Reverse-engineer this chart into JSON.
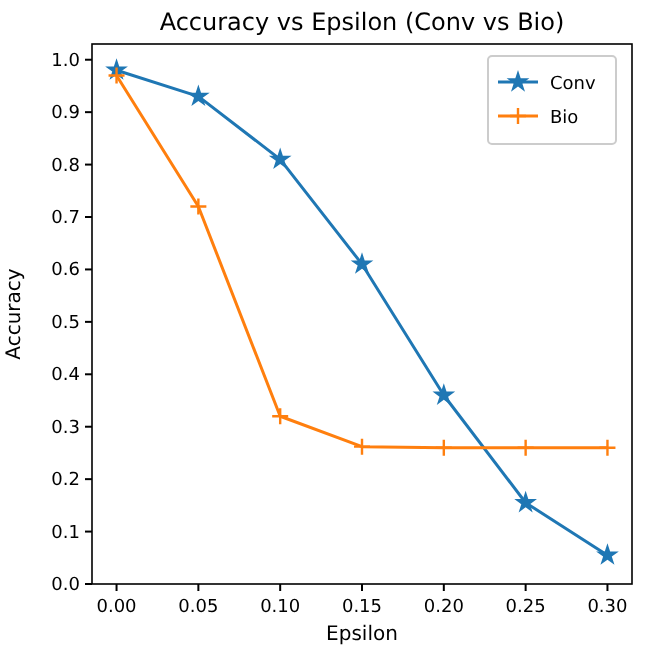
{
  "chart_data": {
    "type": "line",
    "title": "Accuracy vs Epsilon (Conv vs Bio)",
    "xlabel": "Epsilon",
    "ylabel": "Accuracy",
    "x": [
      0,
      0.05,
      0.1,
      0.15,
      0.2,
      0.25,
      0.3
    ],
    "series": [
      {
        "name": "Conv",
        "color": "#1f77b4",
        "marker": "star",
        "values": [
          0.98,
          0.93,
          0.81,
          0.61,
          0.36,
          0.155,
          0.055
        ]
      },
      {
        "name": "Bio",
        "color": "#ff7f0e",
        "marker": "cross",
        "values": [
          0.97,
          0.72,
          0.32,
          0.262,
          0.26,
          0.26,
          0.26
        ]
      }
    ],
    "xlim": [
      -0.015,
      0.315
    ],
    "xticks": [
      {
        "value": 0,
        "label": "0.00"
      },
      {
        "value": 0.05,
        "label": "0.05"
      },
      {
        "value": 0.1,
        "label": "0.10"
      },
      {
        "value": 0.15,
        "label": "0.15"
      },
      {
        "value": 0.2,
        "label": "0.20"
      },
      {
        "value": 0.25,
        "label": "0.25"
      },
      {
        "value": 0.3,
        "label": "0.30"
      }
    ],
    "ylim": [
      0,
      1.03
    ],
    "yticks": [
      {
        "value": 0,
        "label": "0.0"
      },
      {
        "value": 0.1,
        "label": "0.1"
      },
      {
        "value": 0.2,
        "label": "0.2"
      },
      {
        "value": 0.3,
        "label": "0.3"
      },
      {
        "value": 0.4,
        "label": "0.4"
      },
      {
        "value": 0.5,
        "label": "0.5"
      },
      {
        "value": 0.6,
        "label": "0.6"
      },
      {
        "value": 0.7,
        "label": "0.7"
      },
      {
        "value": 0.8,
        "label": "0.8"
      },
      {
        "value": 0.9,
        "label": "0.9"
      },
      {
        "value": 1,
        "label": "1.0"
      }
    ],
    "legend": "top right",
    "grid": false,
    "line_style": "solid"
  }
}
